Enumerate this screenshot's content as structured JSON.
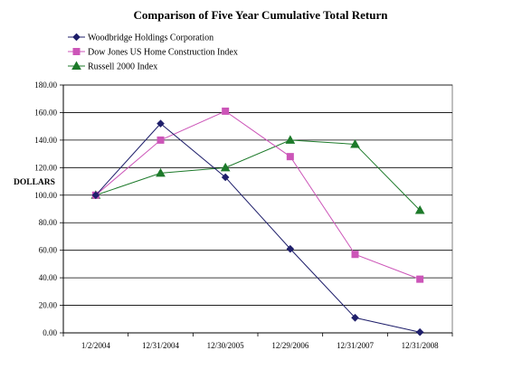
{
  "chart_data": {
    "type": "line",
    "title": "Comparison of Five Year Cumulative Total Return",
    "xlabel": "",
    "ylabel": "DOLLARS",
    "categories": [
      "1/2/2004",
      "12/31/2004",
      "12/30/2005",
      "12/29/2006",
      "12/31/2007",
      "12/31/2008"
    ],
    "ylim": [
      0,
      180
    ],
    "yticks": [
      0,
      20,
      40,
      60,
      80,
      100,
      120,
      140,
      160,
      180
    ],
    "ytick_labels": [
      "0.00",
      "20.00",
      "40.00",
      "60.00",
      "80.00",
      "100.00",
      "120.00",
      "140.00",
      "160.00",
      "180.00"
    ],
    "grid": true,
    "legend_position": "top-left",
    "series": [
      {
        "name": "Woodbridge Holdings Corporation",
        "color": "#1f1f6b",
        "marker": "diamond",
        "values": [
          100,
          152,
          113,
          61,
          11,
          0.5
        ]
      },
      {
        "name": "Dow Jones US Home Construction Index",
        "color": "#cc55b8",
        "marker": "square",
        "values": [
          100,
          140,
          161,
          128,
          57,
          39
        ]
      },
      {
        "name": "Russell 2000 Index",
        "color": "#1d7a2a",
        "marker": "triangle",
        "values": [
          100,
          116,
          120,
          140,
          137,
          89
        ]
      }
    ]
  }
}
